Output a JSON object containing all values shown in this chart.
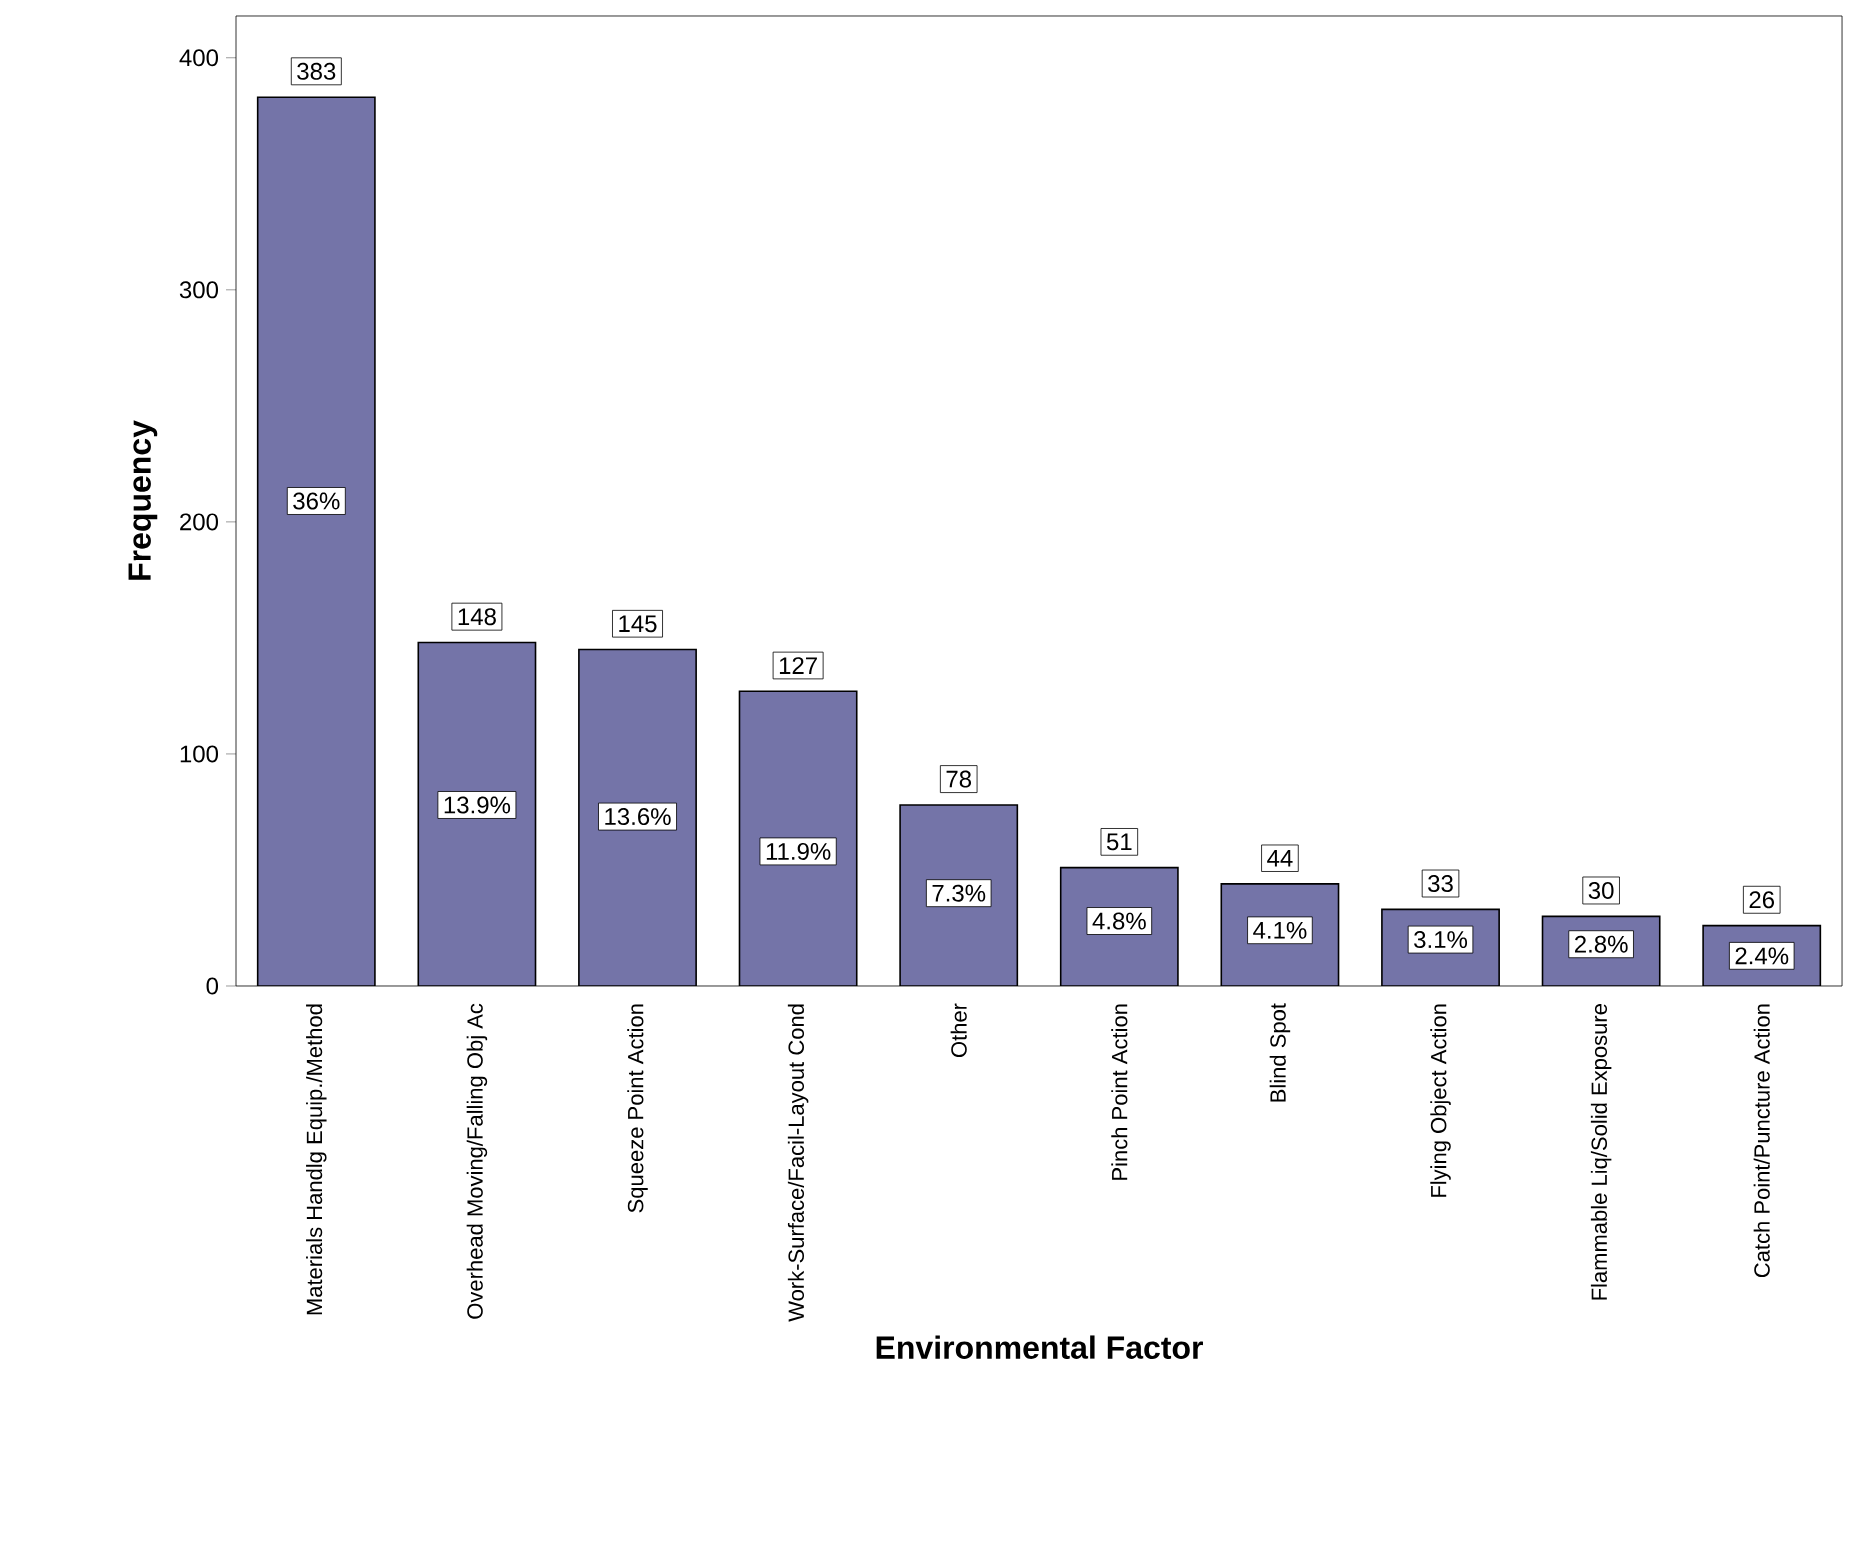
{
  "chart_data": {
    "type": "bar",
    "xlabel": "Environmental Factor",
    "ylabel": "Frequency",
    "categories": [
      "Materials Handlg Equip./Method",
      "Overhead Moving/Falling Obj Ac",
      "Squeeze Point Action",
      "Work-Surface/Facil-Layout Cond",
      "Other",
      "Pinch Point Action",
      "Blind Spot",
      "Flying Object Action",
      "Flammable Liq/Solid Exposure",
      "Catch Point/Puncture Action"
    ],
    "values": [
      383,
      148,
      145,
      127,
      78,
      51,
      44,
      33,
      30,
      26
    ],
    "color": "#7474a8",
    "ylim": [
      0,
      418
    ],
    "yticks": [
      0,
      100,
      200,
      300,
      400
    ],
    "data_labels": true,
    "annotations": [
      {
        "text": "36%",
        "x": "Materials Handlg Equip./Method",
        "y": 209
      },
      {
        "text": "13.9%",
        "x": "Overhead Moving/Falling Obj Ac",
        "y": 78
      },
      {
        "text": "13.6%",
        "x": "Squeeze Point Action",
        "y": 73
      },
      {
        "text": "11.9%",
        "x": "Work-Surface/Facil-Layout Cond",
        "y": 58
      },
      {
        "text": "7.3%",
        "x": "Other",
        "y": 40
      },
      {
        "text": "4.8%",
        "x": "Pinch Point Action",
        "y": 28
      },
      {
        "text": "4.1%",
        "x": "Blind Spot",
        "y": 24
      },
      {
        "text": "3.1%",
        "x": "Flying Object Action",
        "y": 20
      },
      {
        "text": "2.8%",
        "x": "Flammable Liq/Solid Exposure",
        "y": 18
      },
      {
        "text": "2.4%",
        "x": "Catch Point/Puncture Action",
        "y": 13
      }
    ]
  }
}
